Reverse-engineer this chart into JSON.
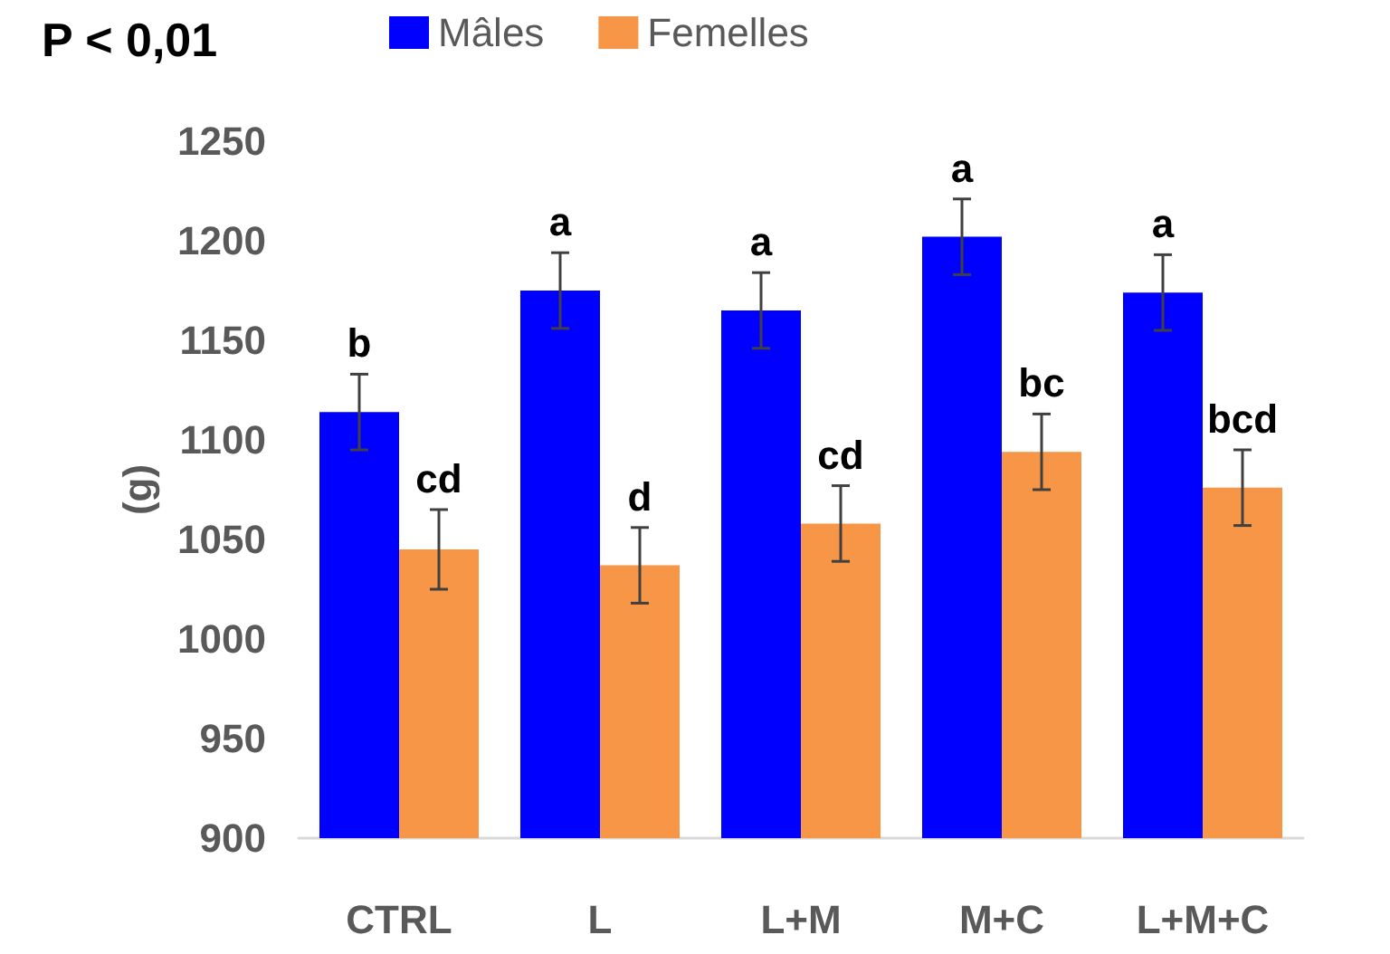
{
  "chart_data": {
    "type": "bar",
    "title": "P < 0,01",
    "ylabel": "(g)",
    "categories": [
      "CTRL",
      "L",
      "L+M",
      "M+C",
      "L+M+C"
    ],
    "series": [
      {
        "name": "Mâles",
        "color": "#0000ff",
        "values": [
          1114,
          1175,
          1165,
          1202,
          1174
        ],
        "errors": [
          19,
          19,
          19,
          19,
          19
        ],
        "value_labels": [
          "b",
          "a",
          "a",
          "a",
          "a"
        ]
      },
      {
        "name": "Femelles",
        "color": "#f79646",
        "values": [
          1045,
          1037,
          1058,
          1094,
          1076
        ],
        "errors": [
          20,
          19,
          19,
          19,
          19
        ],
        "value_labels": [
          "cd",
          "d",
          "cd",
          "bc",
          "bcd"
        ]
      }
    ],
    "ylim": [
      900,
      1250
    ],
    "yticks": [
      900,
      950,
      1000,
      1050,
      1100,
      1150,
      1200,
      1250
    ],
    "legend": "top",
    "grid": false
  }
}
